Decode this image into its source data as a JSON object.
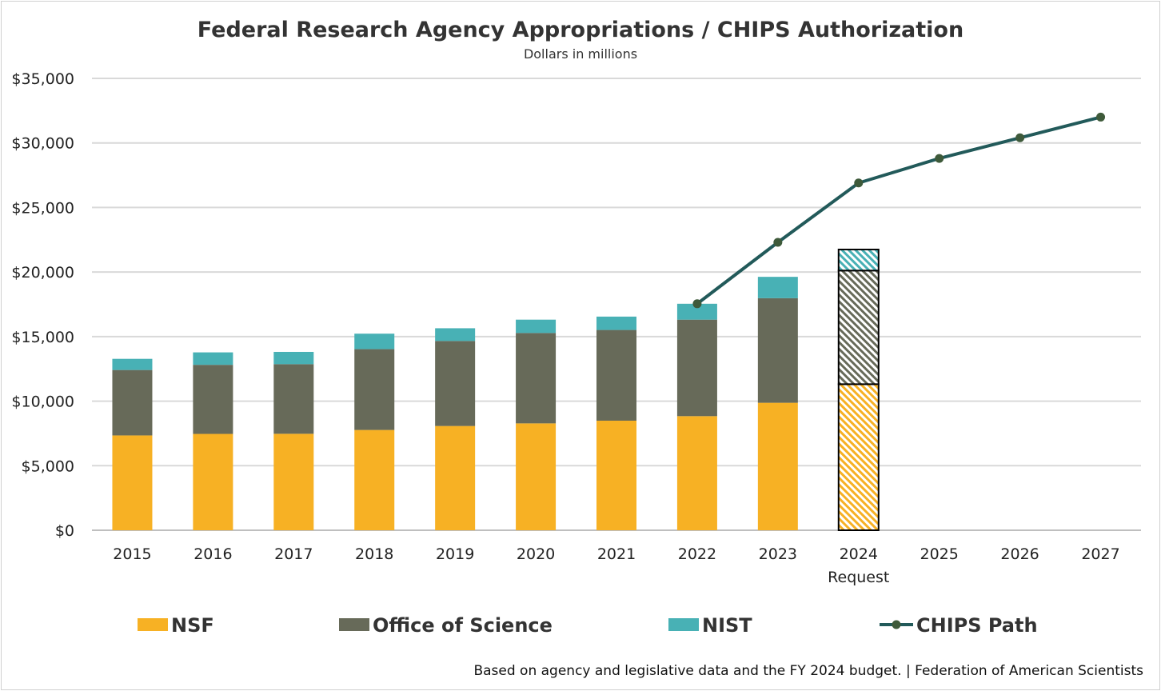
{
  "chart_data": {
    "type": "bar",
    "stacked": true,
    "title": "Federal Research Agency Appropriations / CHIPS Authorization",
    "subtitle": "Dollars in millions",
    "categories": [
      "2015",
      "2016",
      "2017",
      "2018",
      "2019",
      "2020",
      "2021",
      "2022",
      "2023",
      "2024",
      "2025",
      "2026",
      "2027"
    ],
    "category_sublabels": {
      "2024": "Request"
    },
    "ylim": [
      0,
      35000
    ],
    "yticks": [
      "$0",
      "$5,000",
      "$10,000",
      "$15,000",
      "$20,000",
      "$25,000",
      "$30,000",
      "$35,000"
    ],
    "grid": true,
    "legend_position": "bottom",
    "series": [
      {
        "name": "NSF",
        "type": "bar",
        "color": "#F7B124",
        "values": [
          7344,
          7463,
          7472,
          7767,
          8075,
          8278,
          8487,
          8838,
          9874,
          11314,
          null,
          null,
          null
        ]
      },
      {
        "name": "Office of Science",
        "type": "bar",
        "color": "#676A59",
        "values": [
          5068,
          5350,
          5392,
          6260,
          6585,
          7000,
          7026,
          7475,
          8100,
          8800,
          null,
          null,
          null
        ]
      },
      {
        "name": "NIST",
        "type": "bar",
        "color": "#48B1B5",
        "values": [
          864,
          964,
          952,
          1199,
          986,
          1034,
          1035,
          1230,
          1654,
          1632,
          null,
          null,
          null
        ]
      },
      {
        "name": "CHIPS Path",
        "type": "line",
        "color": "#225A5A",
        "marker_color": "#3E5A3A",
        "values": [
          null,
          null,
          null,
          null,
          null,
          null,
          null,
          17543,
          22300,
          26900,
          28800,
          30400,
          32000
        ]
      }
    ],
    "hatched_categories": [
      "2024"
    ],
    "footnote": "Based on agency and legislative data and the FY 2024 budget. | Federation of American Scientists"
  }
}
